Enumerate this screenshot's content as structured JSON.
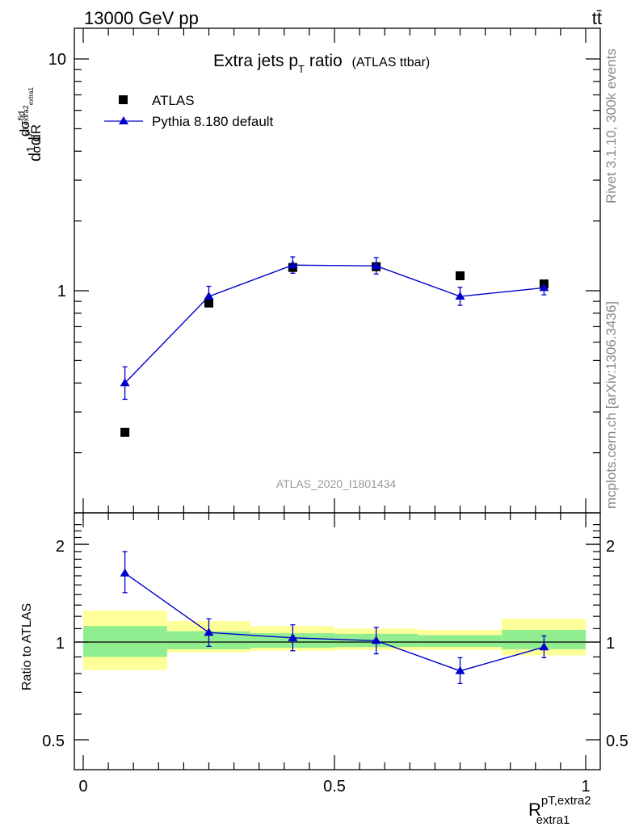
{
  "header": {
    "energy_label": "13000 GeV pp",
    "process_label": "tt̄"
  },
  "side": {
    "rivet_label": "Rivet 3.1.10,  300k events",
    "mcplots_label": "mcplots.cern.ch [arXiv:1306.3436]"
  },
  "chart_data": [
    {
      "type": "scatter",
      "panel": "main",
      "title": "Extra jets p",
      "title_sub": "T",
      "title_main_tail": " ratio",
      "title_suffix": "(ATLAS ttbar)",
      "analysis_label": "ATLAS_2020_I1801434",
      "ylabel_parts": [
        "d",
        "1",
        "σ",
        "d",
        "dσ",
        "fid",
        "p",
        "T,extra2",
        "extra1",
        "dR"
      ],
      "yscale": "log",
      "ylim": [
        0.18,
        14
      ],
      "xlim": [
        -0.01,
        1.02
      ],
      "y_tick_labels": [
        "1",
        "10"
      ],
      "y_ticks": [
        1,
        10
      ],
      "legend_position": "top-left",
      "series": [
        {
          "name": "ATLAS",
          "marker": "square",
          "color": "#000000",
          "x": [
            0.083,
            0.25,
            0.417,
            0.583,
            0.75,
            0.917
          ],
          "y": [
            0.245,
            0.885,
            1.26,
            1.27,
            1.16,
            1.07
          ],
          "yerr": [
            0.0,
            0.0,
            0.0,
            0.0,
            0.0,
            0.02
          ]
        },
        {
          "name": "Pythia 8.180 default",
          "marker": "triangle",
          "color": "#0000cc",
          "x": [
            0.083,
            0.25,
            0.417,
            0.583,
            0.75,
            0.917
          ],
          "y": [
            0.4,
            0.945,
            1.29,
            1.28,
            0.945,
            1.03
          ],
          "yerr_up": [
            0.07,
            0.1,
            0.11,
            0.11,
            0.09,
            0.07
          ],
          "yerr_down": [
            0.06,
            0.09,
            0.1,
            0.1,
            0.08,
            0.07
          ]
        }
      ]
    },
    {
      "type": "line",
      "panel": "ratio",
      "ylabel": "Ratio to ATLAS",
      "xlabel_main": "R",
      "xlabel_sup": "pT,extra2",
      "xlabel_sub": "extra1",
      "yscale": "log",
      "ylim": [
        0.42,
        2.38
      ],
      "xlim": [
        -0.01,
        1.02
      ],
      "y_ticks": [
        0.5,
        1,
        2
      ],
      "y_tick_labels": [
        "0.5",
        "1",
        "2"
      ],
      "x_ticks": [
        0,
        0.5,
        1
      ],
      "x_tick_labels": [
        "0",
        "0.5",
        "1"
      ],
      "bands": [
        {
          "x0": 0.0,
          "x1": 0.167,
          "inner": [
            0.9,
            1.12
          ],
          "outer": [
            0.82,
            1.25
          ]
        },
        {
          "x0": 0.167,
          "x1": 0.333,
          "inner": [
            0.95,
            1.08
          ],
          "outer": [
            0.93,
            1.16
          ]
        },
        {
          "x0": 0.333,
          "x1": 0.5,
          "inner": [
            0.96,
            1.065
          ],
          "outer": [
            0.94,
            1.12
          ]
        },
        {
          "x0": 0.5,
          "x1": 0.667,
          "inner": [
            0.965,
            1.06
          ],
          "outer": [
            0.945,
            1.1
          ]
        },
        {
          "x0": 0.667,
          "x1": 0.833,
          "inner": [
            0.965,
            1.05
          ],
          "outer": [
            0.945,
            1.09
          ]
        },
        {
          "x0": 0.833,
          "x1": 1.0,
          "inner": [
            0.95,
            1.09
          ],
          "outer": [
            0.91,
            1.18
          ]
        }
      ],
      "band_colors": {
        "inner": "#90ee90",
        "outer": "#ffff99"
      },
      "series": [
        {
          "name": "Pythia 8.180 default",
          "color": "#0000cc",
          "x": [
            0.083,
            0.25,
            0.417,
            0.583,
            0.75,
            0.917
          ],
          "y": [
            1.63,
            1.07,
            1.03,
            1.01,
            0.815,
            0.965
          ],
          "yerr_up": [
            0.27,
            0.11,
            0.1,
            0.1,
            0.08,
            0.08
          ],
          "yerr_down": [
            0.21,
            0.1,
            0.09,
            0.09,
            0.07,
            0.07
          ]
        }
      ]
    }
  ]
}
